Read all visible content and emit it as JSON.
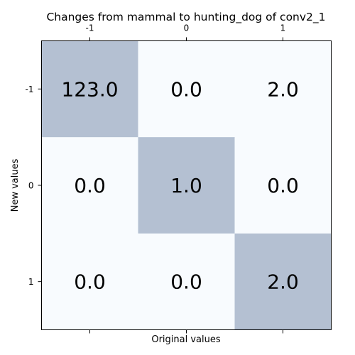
{
  "chart_data": {
    "type": "heatmap",
    "title": "Changes from mammal to hunting_dog of conv2_1",
    "xlabel": "Original values",
    "ylabel": "New values",
    "x_ticks": [
      "-1",
      "0",
      "1"
    ],
    "y_ticks": [
      "-1",
      "0",
      "1"
    ],
    "x_tick_position": "top",
    "values": [
      [
        123.0,
        0.0,
        2.0
      ],
      [
        0.0,
        1.0,
        0.0
      ],
      [
        0.0,
        0.0,
        2.0
      ]
    ],
    "value_labels": [
      [
        "123.0",
        "0.0",
        "2.0"
      ],
      [
        "0.0",
        "1.0",
        "0.0"
      ],
      [
        "0.0",
        "0.0",
        "2.0"
      ]
    ],
    "colors": {
      "high": "#b4c0d2",
      "low": "#f8fbfe",
      "frame": "#000000"
    }
  }
}
